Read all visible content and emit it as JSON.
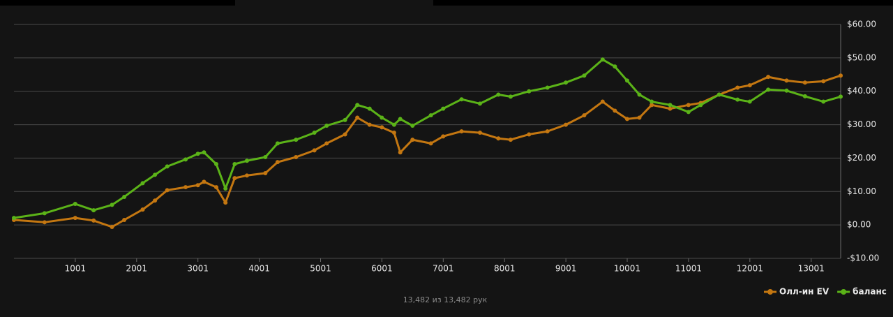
{
  "chart_data": {
    "type": "line",
    "x": [
      1,
      500,
      1000,
      1300,
      1600,
      1800,
      2100,
      2300,
      2500,
      2800,
      3000,
      3100,
      3300,
      3450,
      3600,
      3800,
      4100,
      4300,
      4600,
      4900,
      5100,
      5400,
      5600,
      5800,
      6000,
      6200,
      6300,
      6500,
      6800,
      7000,
      7300,
      7600,
      7900,
      8100,
      8400,
      8700,
      9000,
      9300,
      9600,
      9800,
      10000,
      10200,
      10400,
      10700,
      11000,
      11200,
      11500,
      11800,
      12000,
      12300,
      12600,
      12900,
      13200,
      13482
    ],
    "series": [
      {
        "name": "Олл-ин EV",
        "color": "#c47711",
        "values": [
          1.5,
          0.8,
          2.1,
          1.3,
          -0.6,
          1.5,
          4.6,
          7.3,
          10.4,
          11.3,
          11.9,
          12.9,
          11.3,
          6.7,
          14,
          14.8,
          15.5,
          18.8,
          20.3,
          22.3,
          24.4,
          27.1,
          32.1,
          30,
          29.2,
          27.6,
          21.7,
          25.5,
          24.4,
          26.5,
          28,
          27.6,
          25.9,
          25.5,
          27.1,
          28,
          30,
          32.8,
          36.9,
          34.2,
          31.7,
          32.1,
          35.9,
          34.8,
          35.9,
          36.5,
          39,
          41.1,
          41.8,
          44.3,
          43.2,
          42.6,
          43,
          44.7
        ]
      },
      {
        "name": "баланс",
        "color": "#5bb318",
        "values": [
          2.1,
          3.5,
          6.3,
          4.4,
          6.0,
          8.4,
          12.5,
          15,
          17.5,
          19.6,
          21.3,
          21.7,
          18.2,
          10.9,
          18.2,
          19.2,
          20.3,
          24.4,
          25.5,
          27.6,
          29.7,
          31.4,
          35.9,
          34.8,
          32.1,
          30,
          31.7,
          29.7,
          32.8,
          34.8,
          37.6,
          36.3,
          39,
          38.4,
          40,
          41.1,
          42.6,
          44.7,
          49.5,
          47.4,
          43.2,
          39,
          36.9,
          35.9,
          33.8,
          35.9,
          39,
          37.5,
          36.9,
          40.5,
          40.2,
          38.5,
          36.9,
          38.4
        ]
      }
    ],
    "xlim": [
      1,
      13482
    ],
    "xticks": [
      1001,
      2001,
      3001,
      4001,
      5001,
      6001,
      7001,
      8001,
      9001,
      10001,
      11001,
      12001,
      13001
    ],
    "ylim": [
      -10,
      60
    ],
    "yticks": [
      {
        "value": -10,
        "label": "-$10.00"
      },
      {
        "value": 0,
        "label": "$0.00"
      },
      {
        "value": 10,
        "label": "$10.00"
      },
      {
        "value": 20,
        "label": "$20.00"
      },
      {
        "value": 30,
        "label": "$30.00"
      },
      {
        "value": 40,
        "label": "$40.00"
      },
      {
        "value": 50,
        "label": "$50.00"
      },
      {
        "value": 60,
        "label": "$60.00"
      }
    ],
    "grid": true,
    "legend": "bottom-right",
    "footer": "13,482 из 13,482 рук"
  }
}
